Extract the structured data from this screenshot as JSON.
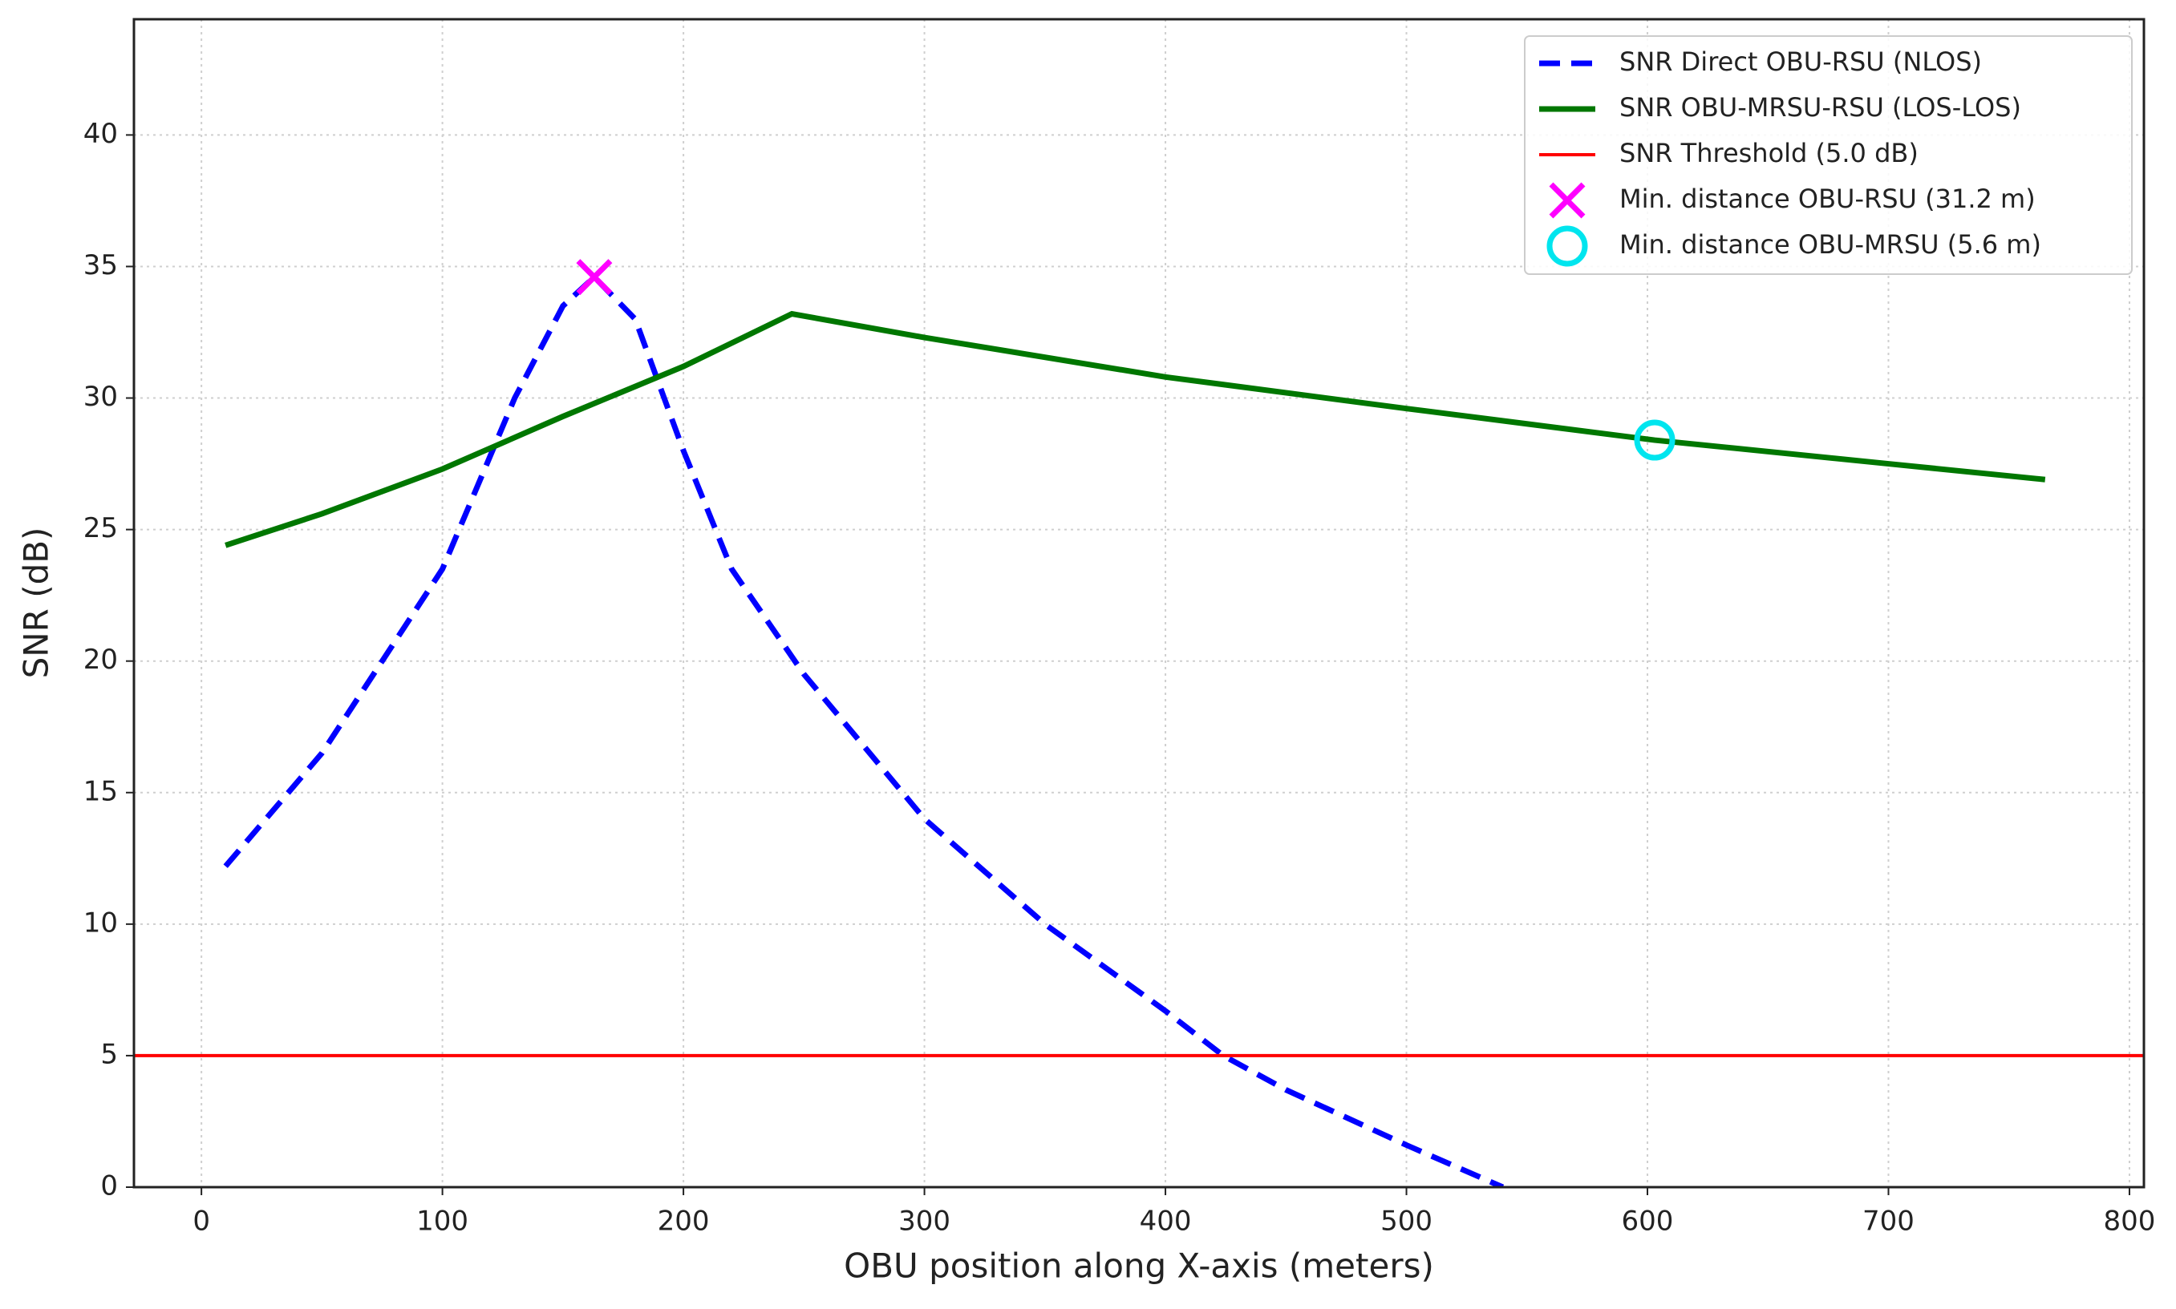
{
  "chart_data": {
    "type": "line",
    "xlabel": "OBU position along X-axis (meters)",
    "ylabel": "SNR (dB)",
    "xlim": [
      -28,
      806
    ],
    "ylim": [
      0,
      44.4
    ],
    "xticks": [
      0,
      100,
      200,
      300,
      400,
      500,
      600,
      700,
      800
    ],
    "yticks": [
      0,
      5,
      10,
      15,
      20,
      25,
      30,
      35,
      40
    ],
    "grid": true,
    "legend": "upper right",
    "series": [
      {
        "name": "SNR Direct OBU-RSU (NLOS)",
        "color": "#0000ff",
        "dash": true,
        "x": [
          10,
          50,
          100,
          130,
          150,
          163,
          180,
          200,
          220,
          250,
          300,
          350,
          400,
          424,
          450,
          500,
          540
        ],
        "values": [
          12.2,
          16.5,
          23.5,
          30,
          33.5,
          34.6,
          33,
          28,
          23.5,
          19.5,
          14,
          10,
          6.7,
          5,
          3.7,
          1.6,
          0
        ]
      },
      {
        "name": "SNR OBU-MRSU-RSU (LOS-LOS)",
        "color": "#007700",
        "dash": false,
        "x": [
          10,
          50,
          100,
          150,
          200,
          245,
          300,
          400,
          500,
          603,
          700,
          765
        ],
        "values": [
          24.4,
          25.6,
          27.3,
          29.3,
          31.2,
          33.2,
          32.3,
          30.8,
          29.6,
          28.4,
          27.5,
          26.9
        ]
      }
    ],
    "threshold": {
      "name": "SNR Threshold (5.0 dB)",
      "color": "#ff0000",
      "value": 5
    },
    "markers": [
      {
        "name": "Min. distance OBU-RSU (31.2 m)",
        "color": "#ff00ff",
        "marker": "x",
        "x": 163,
        "y": 34.6
      },
      {
        "name": "Min. distance OBU-MRSU (5.6 m)",
        "color": "#00e5ee",
        "marker": "o",
        "x": 603,
        "y": 28.4
      }
    ]
  }
}
